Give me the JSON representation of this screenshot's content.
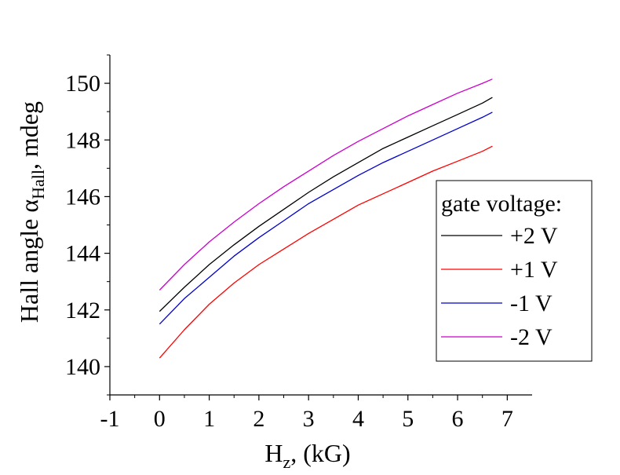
{
  "chart_data": {
    "type": "line",
    "title": "",
    "xlabel": {
      "main": "H",
      "sub": "z",
      "rest": ", (kG)"
    },
    "ylabel": {
      "prefix": "Hall angle ",
      "symbol": "α",
      "sub": "Hall",
      "suffix": ", mdeg"
    },
    "xlim": [
      -1,
      7.5
    ],
    "ylim": [
      139,
      151
    ],
    "xticks": [
      -1,
      0,
      1,
      2,
      3,
      4,
      5,
      6,
      7
    ],
    "yticks": [
      140,
      142,
      144,
      146,
      148,
      150
    ],
    "grid": false,
    "legend": {
      "title": "gate voltage:",
      "placement": "right"
    },
    "x": [
      0,
      0.5,
      1,
      1.5,
      2,
      2.5,
      3,
      3.5,
      4,
      4.5,
      5,
      5.5,
      6,
      6.5,
      6.7
    ],
    "series": [
      {
        "name": "+2 V",
        "color": "#000000",
        "values": [
          141.95,
          142.8,
          143.6,
          144.3,
          144.95,
          145.55,
          146.15,
          146.7,
          147.2,
          147.7,
          148.1,
          148.5,
          148.9,
          149.3,
          149.5
        ]
      },
      {
        "name": "+1 V",
        "color": "#ff0000",
        "values": [
          140.3,
          141.3,
          142.2,
          142.95,
          143.6,
          144.15,
          144.7,
          145.2,
          145.7,
          146.1,
          146.5,
          146.9,
          147.25,
          147.6,
          147.78
        ]
      },
      {
        "name": "-1 V",
        "color": "#0000cc",
        "values": [
          141.5,
          142.4,
          143.15,
          143.9,
          144.55,
          145.15,
          145.75,
          146.25,
          146.75,
          147.2,
          147.6,
          148.0,
          148.4,
          148.8,
          148.98
        ]
      },
      {
        "name": "-2 V",
        "color": "#cc00cc",
        "values": [
          142.7,
          143.6,
          144.4,
          145.1,
          145.75,
          146.35,
          146.9,
          147.45,
          147.95,
          148.4,
          148.85,
          149.25,
          149.65,
          150.0,
          150.15
        ]
      }
    ]
  }
}
